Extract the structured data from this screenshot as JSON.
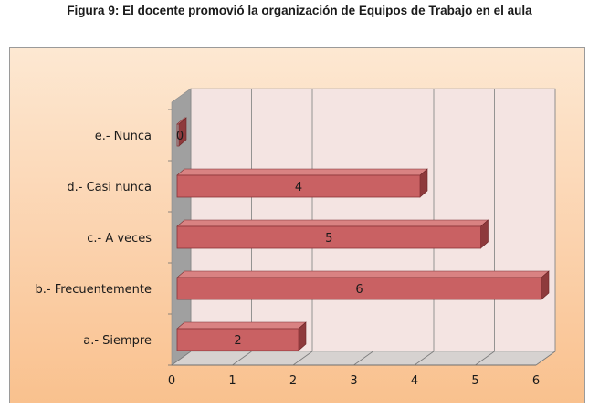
{
  "chart_data": {
    "type": "bar",
    "orientation": "horizontal",
    "title": "Figura 9: El docente promovió la organización de Equipos de Trabajo en el aula",
    "categories": [
      "a.- Siempre",
      "b.- Frecuentemente",
      "c.- A veces",
      "d.- Casi nunca",
      "e.- Nunca"
    ],
    "values": [
      2,
      6,
      5,
      4,
      0
    ],
    "data_labels": [
      "2",
      "6",
      "5",
      "4",
      "0"
    ],
    "xlim": [
      0,
      6
    ],
    "ticks": [
      "0",
      "1",
      "2",
      "3",
      "4",
      "5",
      "6"
    ],
    "grid": true,
    "legend": "none",
    "style": "3d",
    "colors": {
      "bar_front": "#c96163",
      "bar_top": "#d98282",
      "bar_side": "#8e3a3c",
      "wall": "#f4e4e2",
      "floor": "#a0a0a0",
      "gridline": "#8a8a8a"
    }
  }
}
